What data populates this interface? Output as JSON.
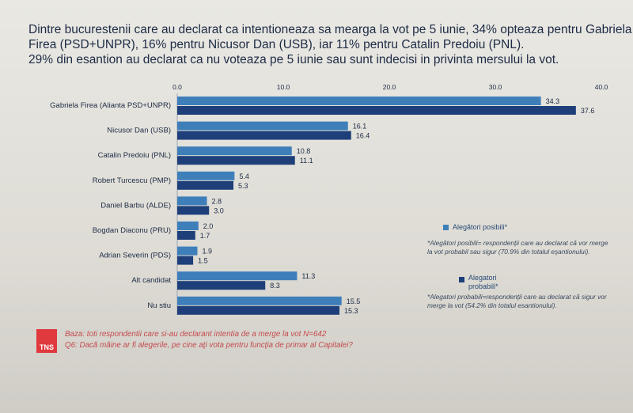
{
  "headline": [
    "Dintre bucurestenii care au declarat ca intentioneaza sa mearga la vot pe 5 iunie, 34% opteaza pentru Gabriela",
    "Firea (PSD+UNPR), 16% pentru Nicusor Dan (USB), iar 11% pentru Catalin Predoiu (PNL).",
    "29% din esantion au declarat ca nu voteaza pe 5 iunie sau sunt indecisi in privinta mersului la vot."
  ],
  "colors": {
    "possible": "#3e7fba",
    "probable": "#1e3f7a",
    "text": "#1d2b45",
    "axis": "#9aa6b6"
  },
  "chart_data": {
    "type": "bar",
    "orientation": "horizontal",
    "categories": [
      "Gabriela Firea (Alianta PSD+UNPR)",
      "Nicusor Dan (USB)",
      "Catalin Predoiu (PNL)",
      "Robert Turcescu (PMP)",
      "Daniel Barbu (ALDE)",
      "Bogdan Diaconu (PRU)",
      "Adrian Severin (PDS)",
      "Alt candidat",
      "Nu stiu"
    ],
    "series": [
      {
        "name": "Alegători posibili*",
        "values": [
          34.3,
          16.1,
          10.8,
          5.4,
          2.8,
          2.0,
          1.9,
          11.3,
          15.5
        ]
      },
      {
        "name": "Alegatori probabili*",
        "values": [
          37.6,
          16.4,
          11.1,
          5.3,
          3.0,
          1.7,
          1.5,
          8.3,
          15.3
        ]
      }
    ],
    "xlim": [
      0,
      40
    ],
    "ticks": [
      "0.0",
      "10.0",
      "20.0",
      "30.0",
      "40.0"
    ],
    "tick_values": [
      0,
      10,
      20,
      30,
      40
    ],
    "grid": false,
    "legend_position": "right"
  },
  "legend": {
    "possible_label": "Alegători posibili*",
    "probable_label": "Alegatori probabili*"
  },
  "notes": {
    "possible": "*Alegători posibili= respondenţii care au declarat că vor merge la vot probabil sau sigur (70.9% din totalul eşantionului).",
    "probable": "*Alegatori probabili=respondenţii care au declarat că sigur vor merge la vot (54.2% din totalul esantionului)."
  },
  "footer": {
    "logo": "TNS",
    "base": "Baza: toti respondentii care si-au declarant intentia de a merge la vot N=642",
    "question": "Q6: Dacă mâine ar fi alegerile, pe cine aţi vota pentru funcţia de primar al Capitalei?"
  }
}
